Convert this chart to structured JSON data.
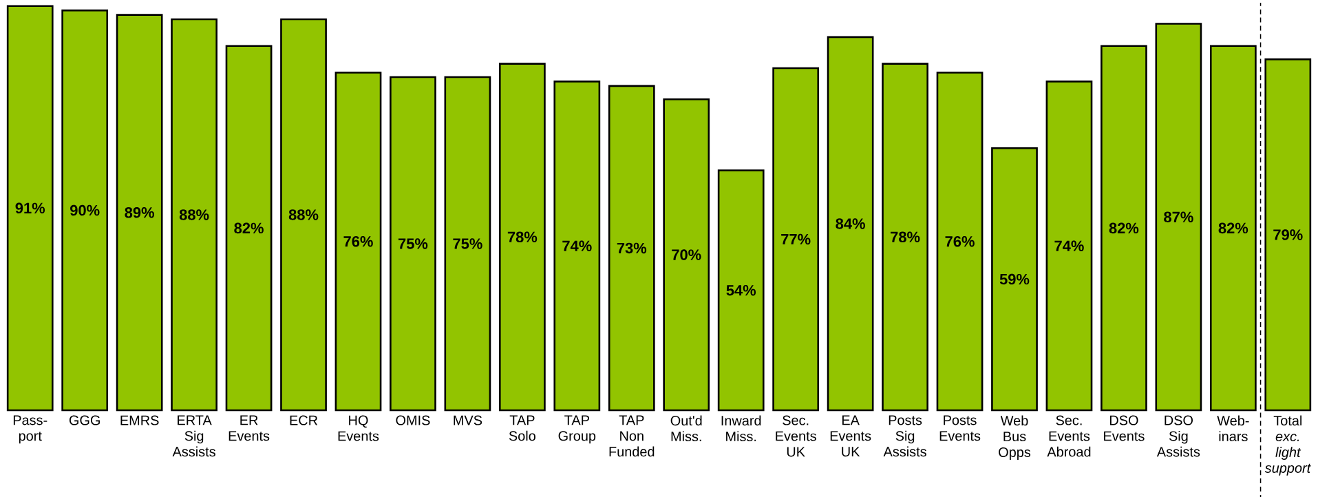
{
  "chart_data": {
    "type": "bar",
    "categories": [
      "Pass-port",
      "GGG",
      "EMRS",
      "ERTA Sig Assists",
      "ER Events",
      "ECR",
      "HQ Events",
      "OMIS",
      "MVS",
      "TAP Solo",
      "TAP Group",
      "TAP Non Funded",
      "Out'd Miss.",
      "Inward Miss.",
      "Sec. Events UK",
      "EA Events UK",
      "Posts Sig Assists",
      "Posts Events",
      "Web Bus Opps",
      "Sec. Events Abroad",
      "DSO Events",
      "DSO Sig Assists",
      "Web-inars",
      "Total *exc. light support*"
    ],
    "values": [
      91,
      90,
      89,
      88,
      82,
      88,
      76,
      75,
      75,
      78,
      74,
      73,
      70,
      54,
      77,
      84,
      78,
      76,
      59,
      74,
      82,
      87,
      82,
      79
    ],
    "value_labels": [
      "91%",
      "90%",
      "89%",
      "88%",
      "82%",
      "88%",
      "76%",
      "75%",
      "75%",
      "78%",
      "74%",
      "73%",
      "70%",
      "54%",
      "77%",
      "84%",
      "78%",
      "76%",
      "59%",
      "74%",
      "82%",
      "87%",
      "82%",
      "79%"
    ],
    "color": "#92c400",
    "tick_labels": "x"
  }
}
